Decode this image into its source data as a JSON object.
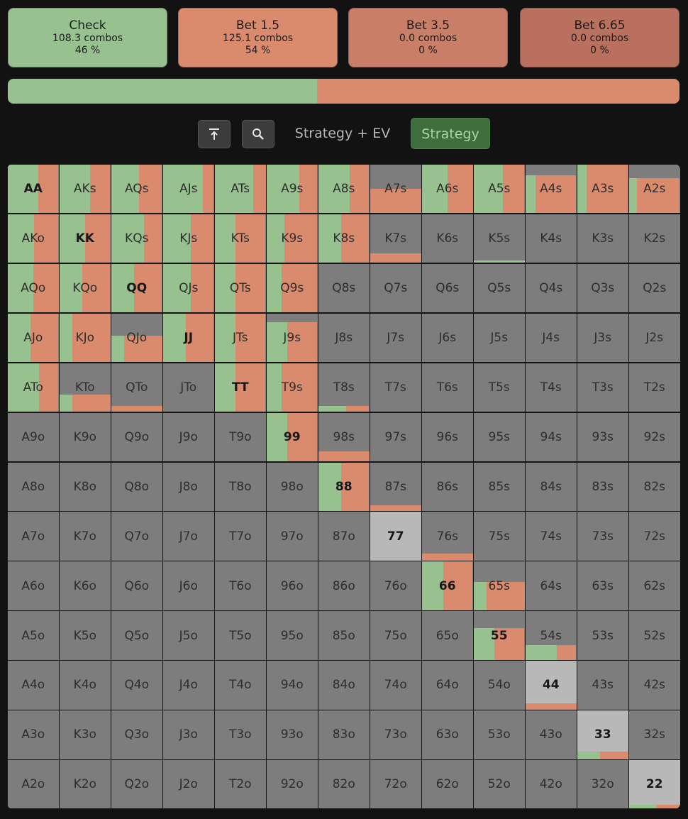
{
  "colors": {
    "check": "#97c28f",
    "bet_small": "#db8b6d",
    "bet_mid": "#c97e67",
    "bet_big": "#b9705e",
    "unused": "#7d7d7d",
    "highlight": "#b8b8b8",
    "grid_border": "#151515"
  },
  "actions": [
    {
      "label": "Check",
      "combos": "108.3 combos",
      "pct": "46 %",
      "color": "#97c28f"
    },
    {
      "label": "Bet 1.5",
      "combos": "125.1 combos",
      "pct": "54 %",
      "color": "#db8b6d"
    },
    {
      "label": "Bet 3.5",
      "combos": "0.0 combos",
      "pct": "0 %",
      "color": "#c97e67"
    },
    {
      "label": "Bet 6.65",
      "combos": "0.0 combos",
      "pct": "0 %",
      "color": "#b9705e"
    }
  ],
  "frequency_bar": [
    {
      "action": "check",
      "fraction": 0.46
    },
    {
      "action": "bet_small",
      "fraction": 0.54
    }
  ],
  "toolbar": {
    "buttons": [
      {
        "icon": "scroll-top-icon"
      },
      {
        "icon": "zoom-icon"
      }
    ],
    "tabs": [
      {
        "label": "Strategy + EV",
        "active": false
      },
      {
        "label": "Strategy",
        "active": true
      }
    ]
  },
  "hands": [
    [
      "AA",
      "AKs",
      "AQs",
      "AJs",
      "ATs",
      "A9s",
      "A8s",
      "A7s",
      "A6s",
      "A5s",
      "A4s",
      "A3s",
      "A2s"
    ],
    [
      "AKo",
      "KK",
      "KQs",
      "KJs",
      "KTs",
      "K9s",
      "K8s",
      "K7s",
      "K6s",
      "K5s",
      "K4s",
      "K3s",
      "K2s"
    ],
    [
      "AQo",
      "KQo",
      "QQ",
      "QJs",
      "QTs",
      "Q9s",
      "Q8s",
      "Q7s",
      "Q6s",
      "Q5s",
      "Q4s",
      "Q3s",
      "Q2s"
    ],
    [
      "AJo",
      "KJo",
      "QJo",
      "JJ",
      "JTs",
      "J9s",
      "J8s",
      "J7s",
      "J6s",
      "J5s",
      "J4s",
      "J3s",
      "J2s"
    ],
    [
      "ATo",
      "KTo",
      "QTo",
      "JTo",
      "TT",
      "T9s",
      "T8s",
      "T7s",
      "T6s",
      "T5s",
      "T4s",
      "T3s",
      "T2s"
    ],
    [
      "A9o",
      "K9o",
      "Q9o",
      "J9o",
      "T9o",
      "99",
      "98s",
      "97s",
      "96s",
      "95s",
      "94s",
      "93s",
      "92s"
    ],
    [
      "A8o",
      "K8o",
      "Q8o",
      "J8o",
      "T8o",
      "98o",
      "88",
      "87s",
      "86s",
      "85s",
      "84s",
      "83s",
      "82s"
    ],
    [
      "A7o",
      "K7o",
      "Q7o",
      "J7o",
      "T7o",
      "97o",
      "87o",
      "77",
      "76s",
      "75s",
      "74s",
      "73s",
      "72s"
    ],
    [
      "A6o",
      "K6o",
      "Q6o",
      "J6o",
      "T6o",
      "96o",
      "86o",
      "76o",
      "66",
      "65s",
      "64s",
      "63s",
      "62s"
    ],
    [
      "A5o",
      "K5o",
      "Q5o",
      "J5o",
      "T5o",
      "95o",
      "85o",
      "75o",
      "65o",
      "55",
      "54s",
      "53s",
      "52s"
    ],
    [
      "A4o",
      "K4o",
      "Q4o",
      "J4o",
      "T4o",
      "94o",
      "84o",
      "74o",
      "64o",
      "54o",
      "44",
      "43s",
      "42s"
    ],
    [
      "A3o",
      "K3o",
      "Q3o",
      "J3o",
      "T3o",
      "93o",
      "83o",
      "73o",
      "63o",
      "53o",
      "43o",
      "33",
      "32s"
    ],
    [
      "A2o",
      "K2o",
      "Q2o",
      "J2o",
      "T2o",
      "92o",
      "82o",
      "72o",
      "62o",
      "52o",
      "42o",
      "32o",
      "22"
    ]
  ],
  "strategy": {
    "AA": {
      "w": 1,
      "check": 0.6
    },
    "AKs": {
      "w": 1,
      "check": 0.6
    },
    "AQs": {
      "w": 1,
      "check": 0.55
    },
    "AJs": {
      "w": 1,
      "check": 0.78
    },
    "ATs": {
      "w": 1,
      "check": 0.75
    },
    "A9s": {
      "w": 1,
      "check": 0.65
    },
    "A8s": {
      "w": 1,
      "check": 0.62
    },
    "A7s": {
      "w": 0.5,
      "check": 0
    },
    "A6s": {
      "w": 1,
      "check": 0.5
    },
    "A5s": {
      "w": 1,
      "check": 0.58
    },
    "A4s": {
      "w": 0.78,
      "check": 0.2
    },
    "A3s": {
      "w": 1,
      "check": 0.18
    },
    "A2s": {
      "w": 0.72,
      "check": 0.15
    },
    "AKo": {
      "w": 1,
      "check": 0.52
    },
    "KK": {
      "w": 1,
      "check": 0.5
    },
    "KQs": {
      "w": 1,
      "check": 0.65
    },
    "KJs": {
      "w": 1,
      "check": 0.55
    },
    "KTs": {
      "w": 1,
      "check": 0.4
    },
    "K9s": {
      "w": 1,
      "check": 0.35
    },
    "K8s": {
      "w": 1,
      "check": 0.45
    },
    "K7s": {
      "w": 0.2,
      "check": 0
    },
    "K5s": {
      "w": 0.05,
      "check": 1
    },
    "AQo": {
      "w": 1,
      "check": 0.5
    },
    "KQo": {
      "w": 1,
      "check": 0.45
    },
    "QQ": {
      "w": 1,
      "check": 0.45
    },
    "QJs": {
      "w": 1,
      "check": 0.55
    },
    "QTs": {
      "w": 1,
      "check": 0.4
    },
    "Q9s": {
      "w": 1,
      "check": 0.3
    },
    "AJo": {
      "w": 1,
      "check": 0.45
    },
    "KJo": {
      "w": 1,
      "check": 0.25
    },
    "QJo": {
      "w": 0.55,
      "check": 0.25
    },
    "JJ": {
      "w": 1,
      "check": 0.45
    },
    "JTs": {
      "w": 1,
      "check": 0.4
    },
    "J9s": {
      "w": 0.82,
      "check": 0.4
    },
    "ATo": {
      "w": 1,
      "check": 0.62
    },
    "KTo": {
      "w": 0.35,
      "check": 0.25
    },
    "QTo": {
      "w": 0.12,
      "check": 0
    },
    "TT": {
      "w": 1,
      "check": 0.4
    },
    "T9s": {
      "w": 1,
      "check": 0.3
    },
    "T8s": {
      "w": 0.12,
      "check": 0.55
    },
    "99": {
      "w": 1,
      "check": 0.4
    },
    "98s": {
      "w": 0.2,
      "check": 0
    },
    "88": {
      "w": 1,
      "check": 0.45
    },
    "87s": {
      "w": 0.12,
      "check": 0
    },
    "76s": {
      "w": 0.15,
      "check": 0
    },
    "66": {
      "w": 1,
      "check": 0.42
    },
    "65s": {
      "w": 0.58,
      "check": 0.25
    },
    "55": {
      "w": 0.65,
      "check": 0.4
    },
    "54s": {
      "w": 0.3,
      "check": 0.62
    },
    "44": {
      "w": 0.12,
      "check": 0
    },
    "33": {
      "w": 0.15,
      "check": 0.45
    },
    "22": {
      "w": 0.08,
      "check": 0.55
    }
  }
}
